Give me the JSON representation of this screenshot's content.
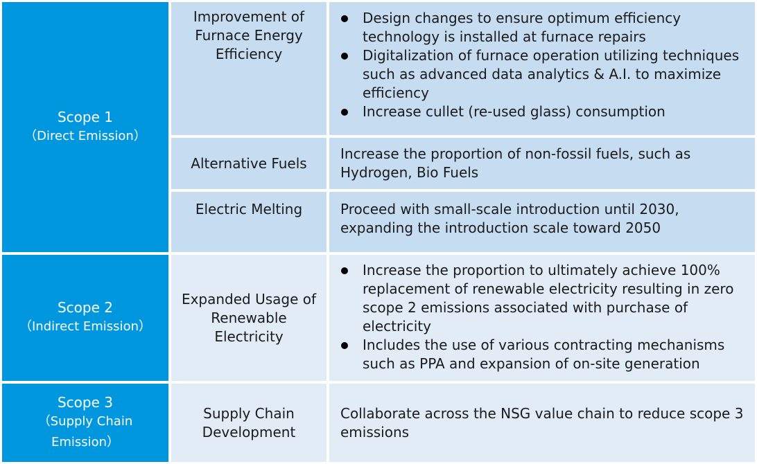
{
  "rows": [
    {
      "scope": {
        "title": "Scope 1",
        "subtitle": "（Direct Emission）"
      },
      "measures": [
        {
          "name": "Improvement of Furnace Energy Efficiency",
          "bullets": [
            "Design changes to ensure optimum efficiency technology is installed at furnace repairs",
            "Digitalization of furnace operation utilizing techniques such as advanced data analytics & A.I. to maximize efficiency",
            "Increase cullet (re-used glass) consumption"
          ]
        },
        {
          "name": "Alternative Fuels",
          "text": "Increase the proportion of non-fossil fuels, such as Hydrogen, Bio Fuels"
        },
        {
          "name": "Electric Melting",
          "text": "Proceed with small-scale introduction until 2030, expanding the introduction scale toward 2050"
        }
      ]
    },
    {
      "scope": {
        "title": "Scope 2",
        "subtitle": "（Indirect Emission）"
      },
      "measures": [
        {
          "name": "Expanded Usage of Renewable Electricity",
          "bullets": [
            "Increase the proportion to ultimately achieve 100% replacement of renewable electricity resulting in zero scope 2 emissions associated with purchase of electricity",
            "Includes the use of various contracting mechanisms such as PPA and expansion of on-site generation"
          ]
        }
      ]
    },
    {
      "scope": {
        "title": "Scope 3",
        "subtitle_line1": "（Supply Chain",
        "subtitle_line2": "Emission）"
      },
      "measures": [
        {
          "name": "Supply Chain Development",
          "text": "Collaborate across the NSG value chain to reduce scope 3 emissions"
        }
      ]
    }
  ],
  "colors": {
    "scope_bg": "#0097df",
    "row_light_a": "#c6dcf1",
    "row_light_b": "#e2ecf7"
  }
}
